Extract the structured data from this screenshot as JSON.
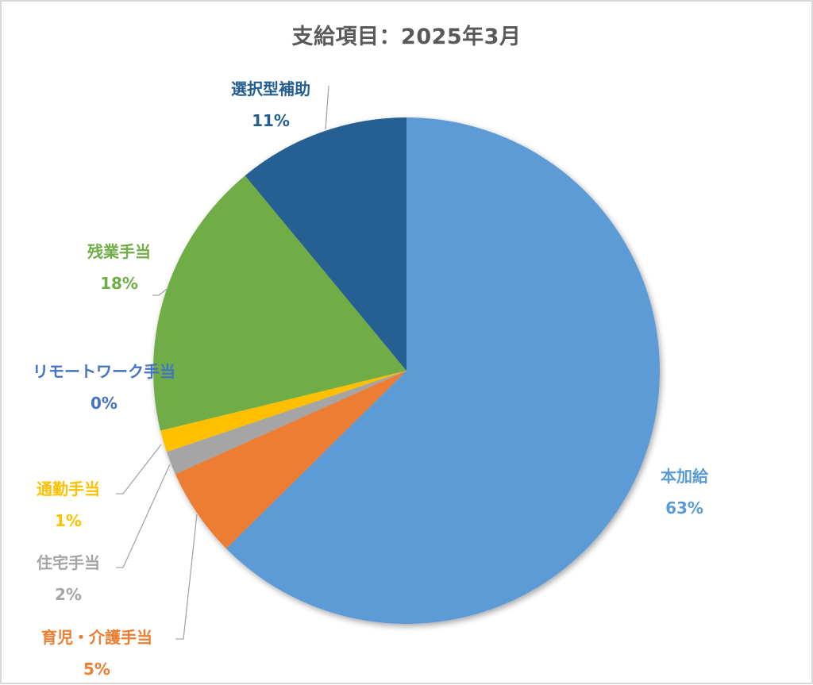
{
  "chart_data": {
    "type": "pie",
    "title": "支給項目：2025年3月",
    "categories": [
      "本加給",
      "育児・介護手当",
      "住宅手当",
      "通勤手当",
      "リモートワーク手当",
      "残業手当",
      "選択型補助"
    ],
    "values": [
      63,
      5,
      2,
      1,
      0,
      18,
      11
    ],
    "value_labels": [
      "63%",
      "5%",
      "2%",
      "1%",
      "0%",
      "18%",
      "11%"
    ],
    "colors": [
      "#5B9BD5",
      "#ED7D31",
      "#A5A5A5",
      "#FFC000",
      "#4472C4",
      "#70AD47",
      "#255E91"
    ],
    "start_angle_deg": 0,
    "direction": "clockwise",
    "legend": "none (data labels with leader lines)"
  },
  "chart": {
    "title": "支給項目：2025年3月",
    "labels": [
      {
        "name": "本加給",
        "pct": "63%",
        "color": "#5B9BD5"
      },
      {
        "name": "育児・介護手当",
        "pct": "5%",
        "color": "#ED7D31"
      },
      {
        "name": "住宅手当",
        "pct": "2%",
        "color": "#A5A5A5"
      },
      {
        "name": "通勤手当",
        "pct": "1%",
        "color": "#FFC000"
      },
      {
        "name": "リモートワーク手当",
        "pct": "0%",
        "color": "#4472C4"
      },
      {
        "name": "残業手当",
        "pct": "18%",
        "color": "#70AD47"
      },
      {
        "name": "選択型補助",
        "pct": "11%",
        "color": "#255E91"
      }
    ]
  }
}
